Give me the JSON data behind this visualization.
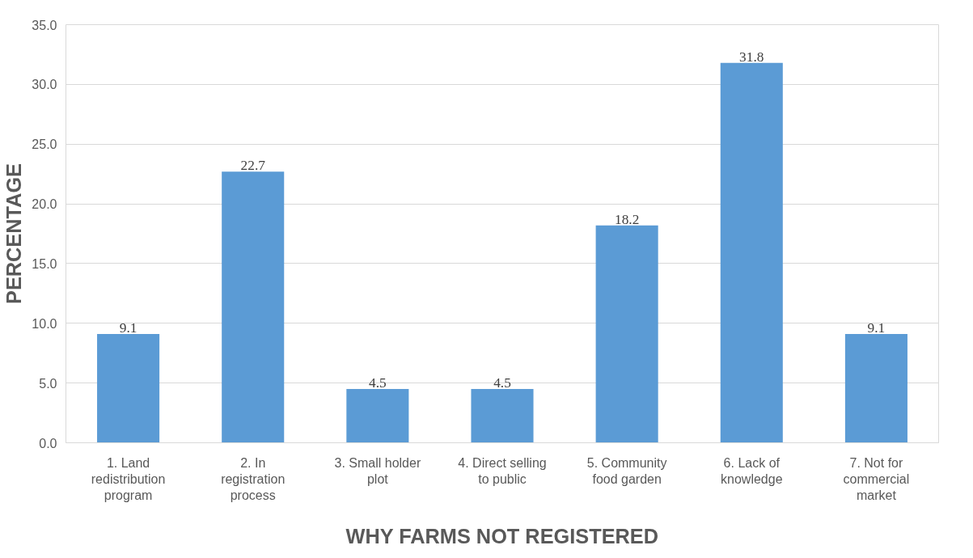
{
  "chart_data": {
    "type": "bar",
    "categories": [
      "1. Land\nredistribution\nprogram",
      "2. In\nregistration\nprocess",
      "3. Small holder\nplot",
      "4. Direct selling\nto public",
      "5. Community\nfood garden",
      "6. Lack of\nknowledge",
      "7. Not for\ncommercial\nmarket"
    ],
    "values": [
      9.1,
      22.7,
      4.5,
      4.5,
      18.2,
      31.8,
      9.1
    ],
    "color": "#5b9bd5",
    "xlabel": "WHY FARMS NOT REGISTERED",
    "ylabel": "PERCENTAGE",
    "ylim": [
      0,
      35
    ],
    "yticks": [
      {
        "value": 0,
        "label": "0.0"
      },
      {
        "value": 5,
        "label": "5.0"
      },
      {
        "value": 10,
        "label": "10.0"
      },
      {
        "value": 15,
        "label": "15.0"
      },
      {
        "value": 20,
        "label": "20.0"
      },
      {
        "value": 25,
        "label": "25.0"
      },
      {
        "value": 30,
        "label": "30.0"
      },
      {
        "value": 35,
        "label": "35.0"
      }
    ],
    "grid": "y",
    "data_labels": true
  }
}
